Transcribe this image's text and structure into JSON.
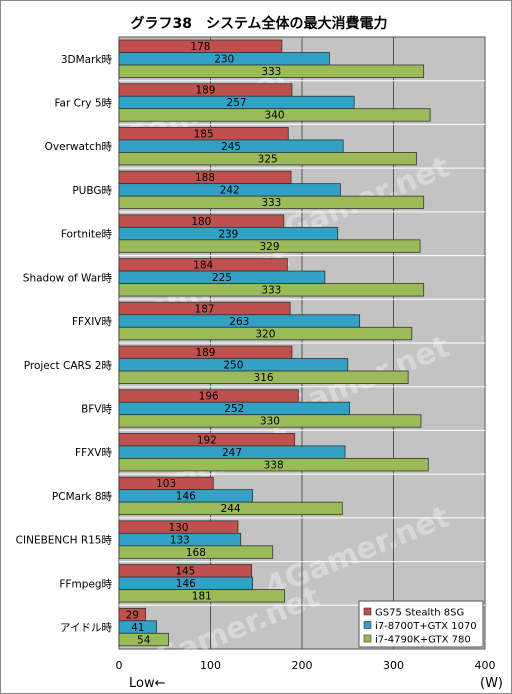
{
  "chart_data": {
    "type": "bar",
    "orientation": "horizontal",
    "title": "グラフ38　システム全体の最大消費電力",
    "categories": [
      "3DMark時",
      "Far Cry 5時",
      "Overwatch時",
      "PUBG時",
      "Fortnite時",
      "Shadow of War時",
      "FFXIV時",
      "Project CARS 2時",
      "BFV時",
      "FFXV時",
      "PCMark 8時",
      "CINEBENCH R15時",
      "FFmpeg時",
      "アイドル時"
    ],
    "series": [
      {
        "name": "GS75 Stealth 8SG",
        "color": "#c0504d",
        "values": [
          178,
          189,
          185,
          188,
          180,
          184,
          187,
          189,
          196,
          192,
          103,
          130,
          145,
          29
        ]
      },
      {
        "name": "i7-8700T+GTX 1070",
        "color": "#31a2c6",
        "values": [
          230,
          257,
          245,
          242,
          239,
          225,
          263,
          250,
          252,
          247,
          146,
          133,
          146,
          41
        ]
      },
      {
        "name": "i7-4790K+GTX 780",
        "color": "#9bbb59",
        "values": [
          333,
          340,
          325,
          333,
          329,
          333,
          320,
          316,
          330,
          338,
          244,
          168,
          181,
          54
        ]
      }
    ],
    "xlim": [
      0,
      400
    ],
    "xticks": [
      0,
      100,
      200,
      300,
      400
    ],
    "xlabel_left": "Low←",
    "xlabel_unit": "(W)",
    "grid": true,
    "legend_position": "bottom-right",
    "watermark": "4Gamer.net"
  }
}
